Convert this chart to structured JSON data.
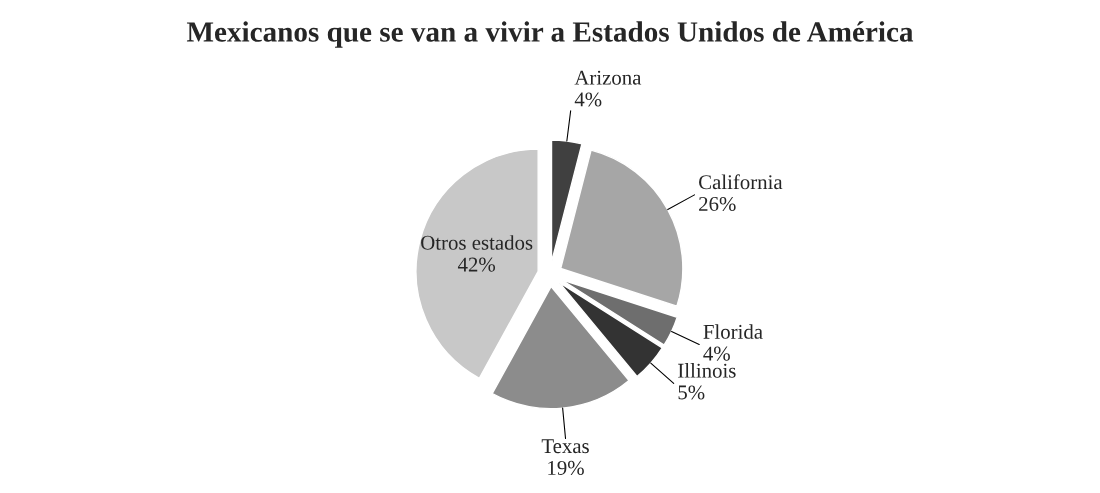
{
  "chart_data": {
    "type": "pie",
    "title": "Mexicanos que se van a vivir a Estados Unidos de América",
    "categories": [
      "Arizona",
      "California",
      "Florida",
      "Illinois",
      "Texas",
      "Otros estados"
    ],
    "values": [
      4,
      26,
      4,
      5,
      19,
      42
    ],
    "colors": [
      "#404040",
      "#a6a6a6",
      "#6e6e6e",
      "#333333",
      "#8c8c8c",
      "#c8c8c8"
    ],
    "value_labels": [
      "4%",
      "26%",
      "4%",
      "5%",
      "19%",
      "42%"
    ],
    "legend": false
  }
}
